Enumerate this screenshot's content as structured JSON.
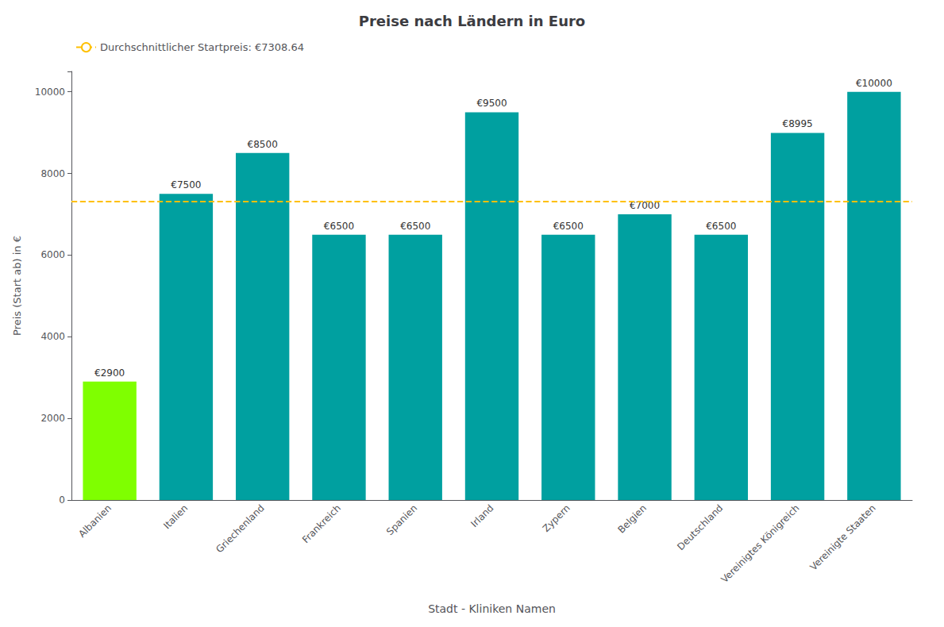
{
  "chart_data": {
    "type": "bar",
    "title": "Preise nach Ländern in Euro",
    "xlabel": "Stadt - Kliniken Namen",
    "ylabel": "Preis (Start ab) in €",
    "categories": [
      "Albanien",
      "Italien",
      "Griechenland",
      "Frankreich",
      "Spanien",
      "Irland",
      "Zypern",
      "Belgien",
      "Deutschland",
      "Vereinigtes Königreich",
      "Vereinigte Staaten"
    ],
    "values": [
      2900,
      7500,
      8500,
      6500,
      6500,
      9500,
      6500,
      7000,
      6500,
      8995,
      10000
    ],
    "value_labels": [
      "€2900",
      "€7500",
      "€8500",
      "€6500",
      "€6500",
      "€9500",
      "€6500",
      "€7000",
      "€6500",
      "€8995",
      "€10000"
    ],
    "data_labels": true,
    "colors": [
      "#7FFF00",
      "#00A0A0",
      "#00A0A0",
      "#00A0A0",
      "#00A0A0",
      "#00A0A0",
      "#00A0A0",
      "#00A0A0",
      "#00A0A0",
      "#00A0A0",
      "#00A0A0"
    ],
    "hlines": [
      {
        "label": "Durchschnittlicher Startpreis: €7308.64",
        "value": 7308.64,
        "color": "#FFC000",
        "line_style": "dashed"
      }
    ],
    "ylim": [
      0,
      10500
    ],
    "yticks": [
      0,
      2000,
      4000,
      6000,
      8000,
      10000
    ],
    "grid": false,
    "legend": "upper left"
  }
}
